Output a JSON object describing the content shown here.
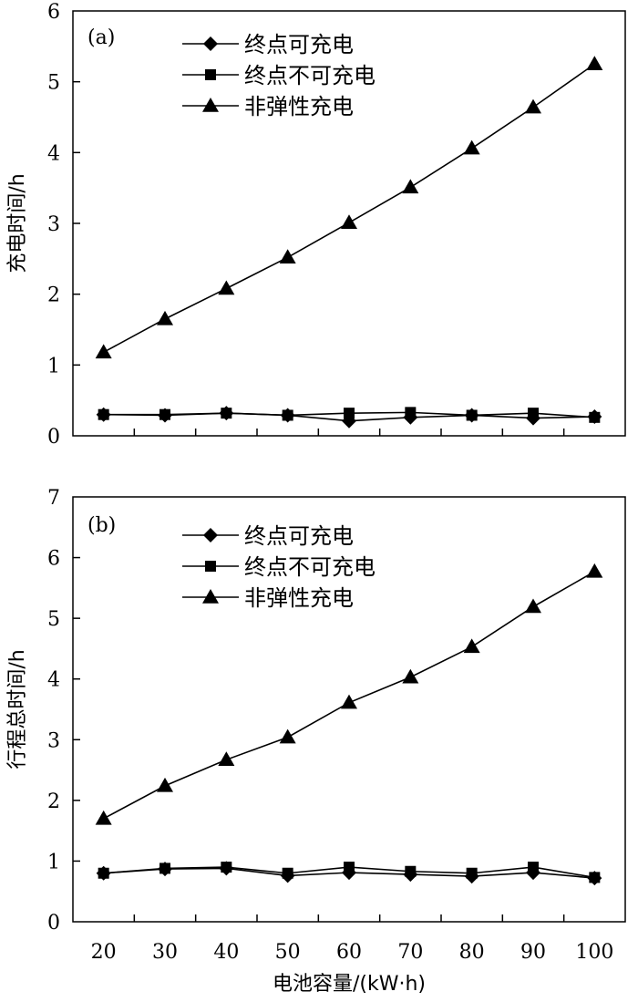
{
  "chart_data": [
    {
      "type": "line",
      "panel_label": "(a)",
      "ylabel": "充电时间/h",
      "xlabel": "",
      "x": [
        20,
        30,
        40,
        50,
        60,
        70,
        80,
        90,
        100
      ],
      "xlim": [
        15,
        105
      ],
      "ylim": [
        0,
        6
      ],
      "yticks": [
        "0",
        "1",
        "2",
        "3",
        "4",
        "5",
        "6"
      ],
      "xticks": [],
      "grid": false,
      "legend_position": "top-left",
      "series": [
        {
          "name": "终点可充电",
          "marker": "diamond",
          "values": [
            0.3,
            0.29,
            0.32,
            0.29,
            0.21,
            0.26,
            0.29,
            0.25,
            0.27
          ]
        },
        {
          "name": "终点不可充电",
          "marker": "square",
          "values": [
            0.3,
            0.3,
            0.32,
            0.29,
            0.32,
            0.33,
            0.29,
            0.32,
            0.26
          ]
        },
        {
          "name": "非弹性充电",
          "marker": "triangle",
          "values": [
            1.18,
            1.65,
            2.08,
            2.52,
            3.01,
            3.51,
            4.06,
            4.64,
            5.25
          ]
        }
      ]
    },
    {
      "type": "line",
      "panel_label": "(b)",
      "ylabel": "行程总时间/h",
      "xlabel": "电池容量/(kW·h)",
      "x": [
        20,
        30,
        40,
        50,
        60,
        70,
        80,
        90,
        100
      ],
      "xlim": [
        15,
        105
      ],
      "ylim": [
        0,
        7
      ],
      "yticks": [
        "0",
        "1",
        "2",
        "3",
        "4",
        "5",
        "6",
        "7"
      ],
      "xticks": [
        "20",
        "30",
        "40",
        "50",
        "60",
        "70",
        "80",
        "90",
        "100"
      ],
      "grid": false,
      "legend_position": "top-left",
      "series": [
        {
          "name": "终点可充电",
          "marker": "diamond",
          "values": [
            0.8,
            0.87,
            0.88,
            0.76,
            0.81,
            0.78,
            0.75,
            0.81,
            0.72
          ]
        },
        {
          "name": "终点不可充电",
          "marker": "square",
          "values": [
            0.8,
            0.88,
            0.9,
            0.8,
            0.9,
            0.83,
            0.8,
            0.9,
            0.73
          ]
        },
        {
          "name": "非弹性充电",
          "marker": "triangle",
          "values": [
            1.7,
            2.24,
            2.67,
            3.04,
            3.61,
            4.03,
            4.53,
            5.19,
            5.77
          ]
        }
      ]
    }
  ]
}
